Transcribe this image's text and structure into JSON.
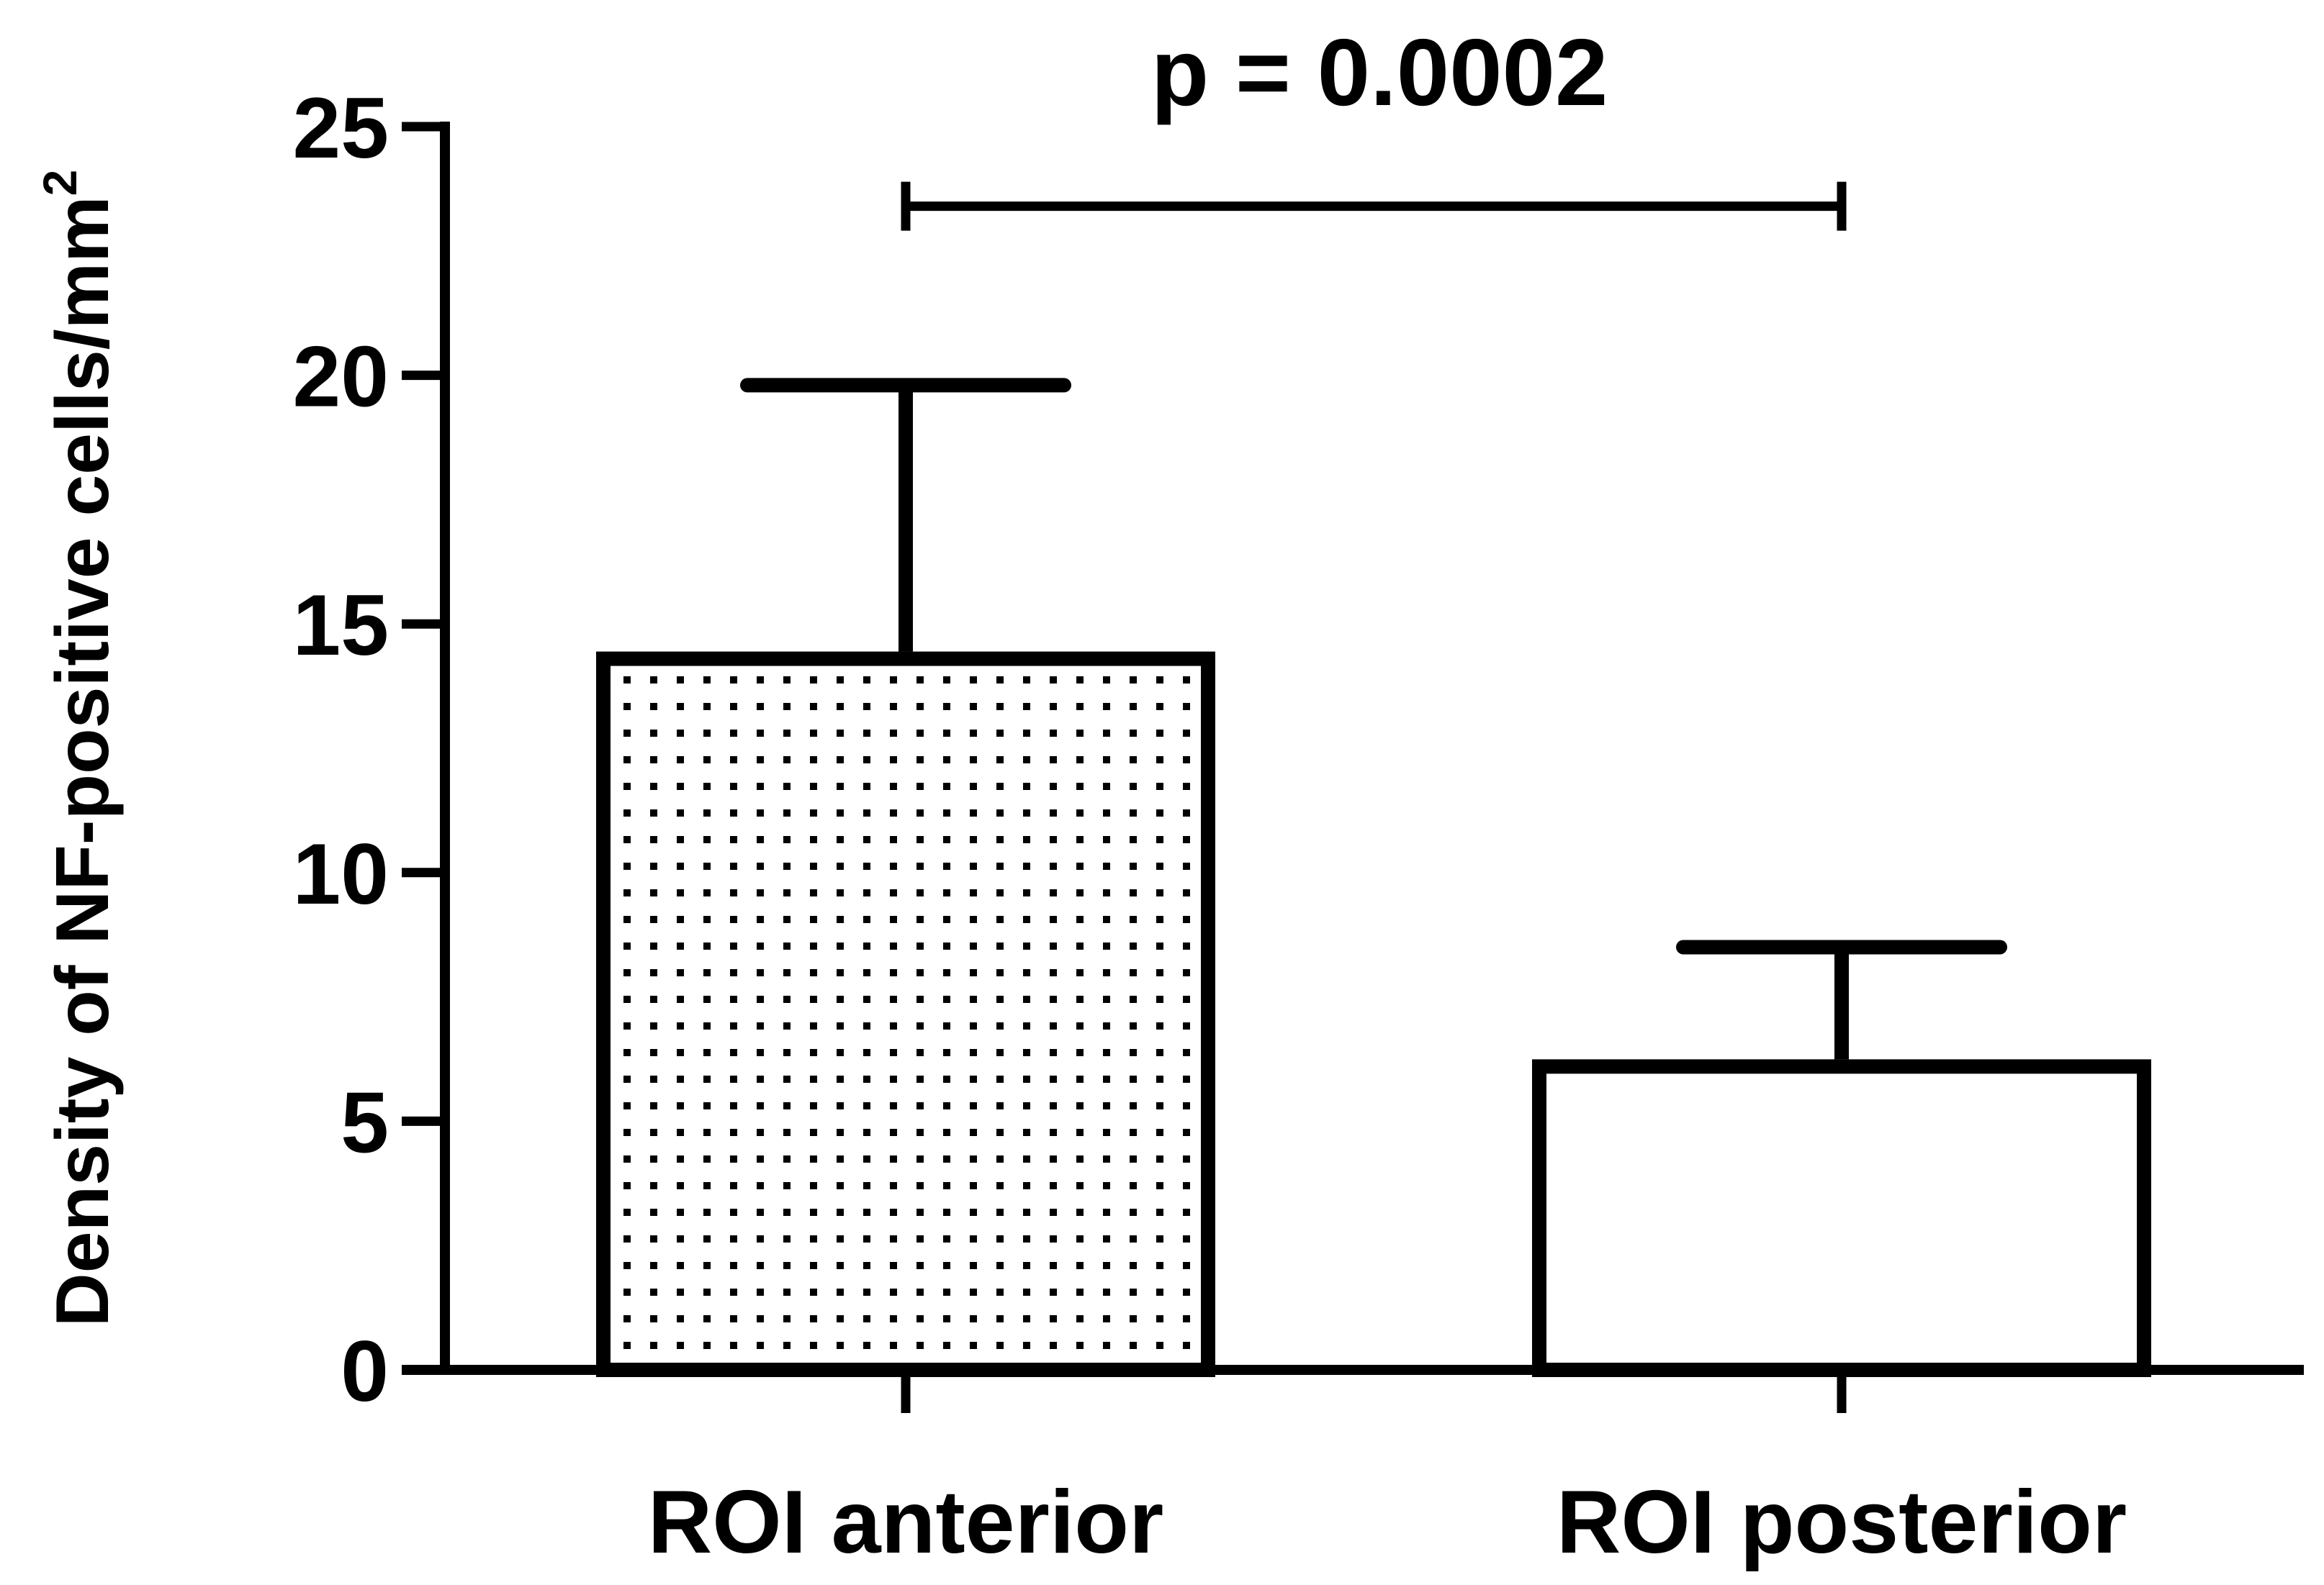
{
  "chart_data": {
    "type": "bar",
    "title": "",
    "categories": [
      "ROI anterior",
      "ROI posterior"
    ],
    "values": [
      14.3,
      6.1
    ],
    "error_bars_upper": [
      19.8,
      8.5
    ],
    "fills": [
      "dotted",
      "none"
    ],
    "xlabel": "",
    "ylabel": "Density of NF-positive cells/mm",
    "ylabel_superscript": "2",
    "ylim": [
      0,
      25
    ],
    "yticks": [
      0,
      5,
      10,
      15,
      20,
      25
    ],
    "ytick_labels": [
      "0",
      "5",
      "10",
      "15",
      "20",
      "25"
    ],
    "grid": false,
    "annotation": {
      "text": "p = 0.0002",
      "between": [
        "ROI anterior",
        "ROI posterior"
      ],
      "y": 23.4
    }
  }
}
